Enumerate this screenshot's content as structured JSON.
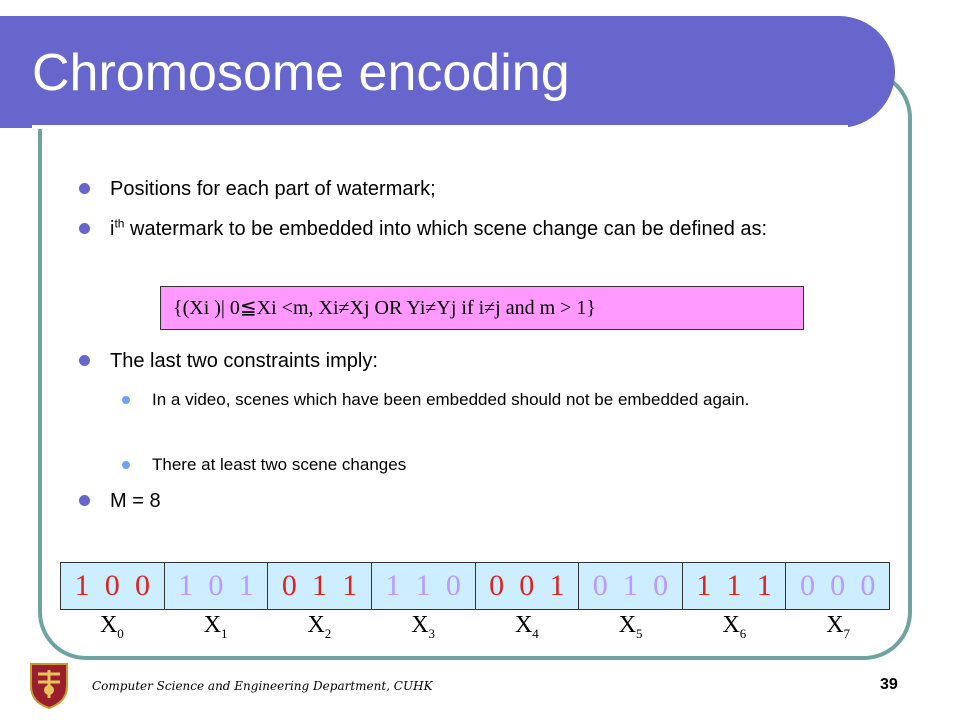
{
  "slide": {
    "title": "Chromosome encoding",
    "bullets": {
      "b1": "Positions for each part of watermark;",
      "b2_prefix": "i",
      "b2_sup": "th",
      "b2_rest": " watermark to be embedded into which scene change can be defined as:",
      "b3": "The last two constraints imply:",
      "b3_sub1": "In a video, scenes which have been embedded should not be embedded again.",
      "b3_sub2": "There at least two scene changes",
      "b4": "M = 8"
    },
    "formula": "{(Xi )| 0≦Xi <m, Xi≠Xj OR Yi≠Yj if i≠j and m > 1}",
    "chromosome": {
      "groups": [
        {
          "bits": [
            "1",
            "0",
            "0"
          ],
          "label": "X",
          "sub": "0"
        },
        {
          "bits": [
            "1",
            "0",
            "1"
          ],
          "label": "X",
          "sub": "1"
        },
        {
          "bits": [
            "0",
            "1",
            "1"
          ],
          "label": "X",
          "sub": "2"
        },
        {
          "bits": [
            "1",
            "1",
            "0"
          ],
          "label": "X",
          "sub": "3"
        },
        {
          "bits": [
            "0",
            "0",
            "1"
          ],
          "label": "X",
          "sub": "4"
        },
        {
          "bits": [
            "0",
            "1",
            "0"
          ],
          "label": "X",
          "sub": "5"
        },
        {
          "bits": [
            "1",
            "1",
            "1"
          ],
          "label": "X",
          "sub": "6"
        },
        {
          "bits": [
            "0",
            "0",
            "0"
          ],
          "label": "X",
          "sub": "7"
        }
      ]
    },
    "footer": "Computer Science and Engineering Department, CUHK",
    "page_number": "39"
  },
  "colors": {
    "title_bar": "#6666cc",
    "frame": "#6fa3a0",
    "formula_bg": "#ff99ff",
    "bits_bg": "#cceeff",
    "bit_red": "#dd2222",
    "bit_lilac": "#bb99ff"
  },
  "icons": {
    "logo": "cuhk-crest-icon"
  }
}
